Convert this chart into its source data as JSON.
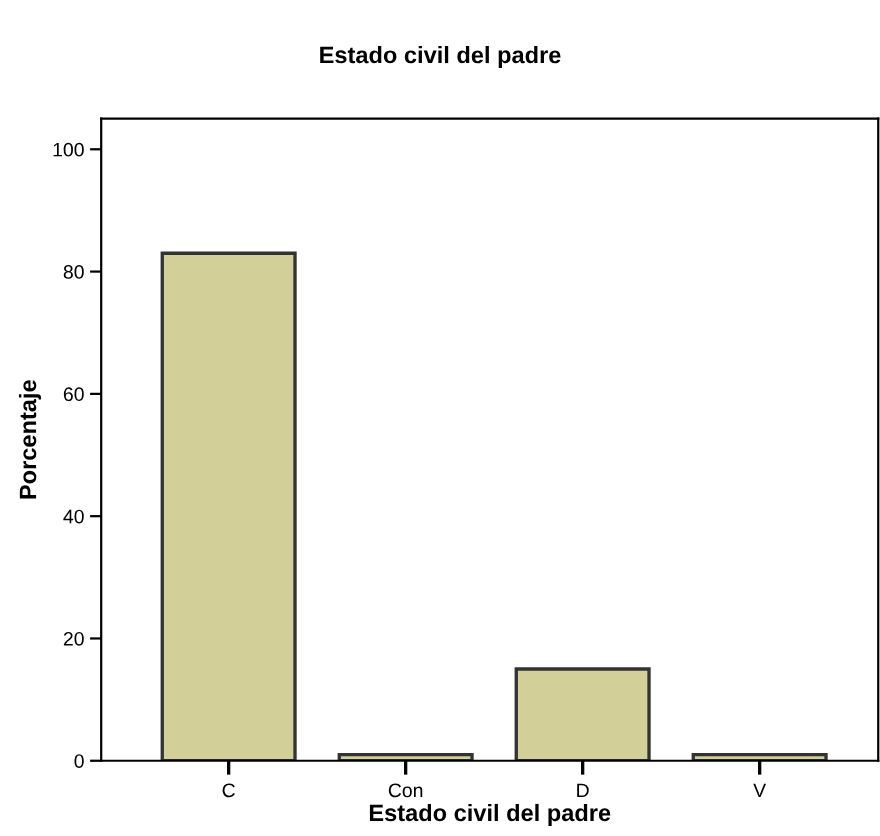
{
  "chart_data": {
    "type": "bar",
    "title": "Estado civil del padre",
    "xlabel": "Estado civil del padre",
    "ylabel": "Porcentaje",
    "categories": [
      "C",
      "Con",
      "D",
      "V"
    ],
    "values": [
      83,
      1,
      15,
      1
    ],
    "color": "#d3cf98",
    "ylim": [
      0,
      105
    ],
    "yticks": [
      0,
      20,
      40,
      60,
      80,
      100
    ],
    "grid": false,
    "legend": false
  }
}
